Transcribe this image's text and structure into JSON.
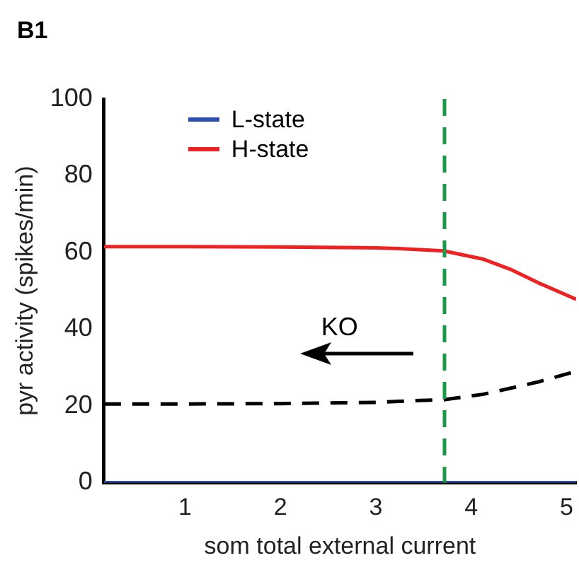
{
  "chart_data": {
    "type": "line",
    "title": "B1",
    "xlabel": "som total external current",
    "ylabel": "pyr activity (spikes/min)",
    "xlim": [
      0.15,
      5.1
    ],
    "xticks": [
      1,
      2,
      3,
      4,
      5
    ],
    "ylim": [
      0,
      100
    ],
    "yticks": [
      0,
      20,
      40,
      60,
      80,
      100
    ],
    "grid": false,
    "legend": "top left",
    "marker": "none",
    "annotations": [
      "KO"
    ],
    "ref_lines": [
      {
        "axis": "x",
        "value": 3.72,
        "color": "#1a9a48",
        "line_style": "dashed"
      }
    ],
    "series": [
      {
        "name": "L-state",
        "color": "#2b4fa8",
        "x": [
          0.15,
          5.1
        ],
        "values": [
          0,
          0
        ],
        "line_style": "solid"
      },
      {
        "name": "H-state",
        "color": "#ee2222",
        "x": [
          0.15,
          1,
          2,
          3,
          3.24,
          3.71,
          4.12,
          4.41,
          4.71,
          5.1
        ],
        "values": [
          61.5,
          61.5,
          61.4,
          61.2,
          61,
          60.4,
          58.3,
          55.6,
          52,
          47.8
        ],
        "line_style": "solid"
      },
      {
        "color": "#000000",
        "x": [
          0.15,
          1,
          2,
          3,
          3.24,
          3.71,
          4.12,
          4.41,
          4.71,
          5.1
        ],
        "values": [
          20.5,
          20.5,
          20.6,
          20.9,
          21.2,
          21.6,
          23,
          24.6,
          26.3,
          29
        ],
        "line_style": "dashed"
      }
    ]
  }
}
